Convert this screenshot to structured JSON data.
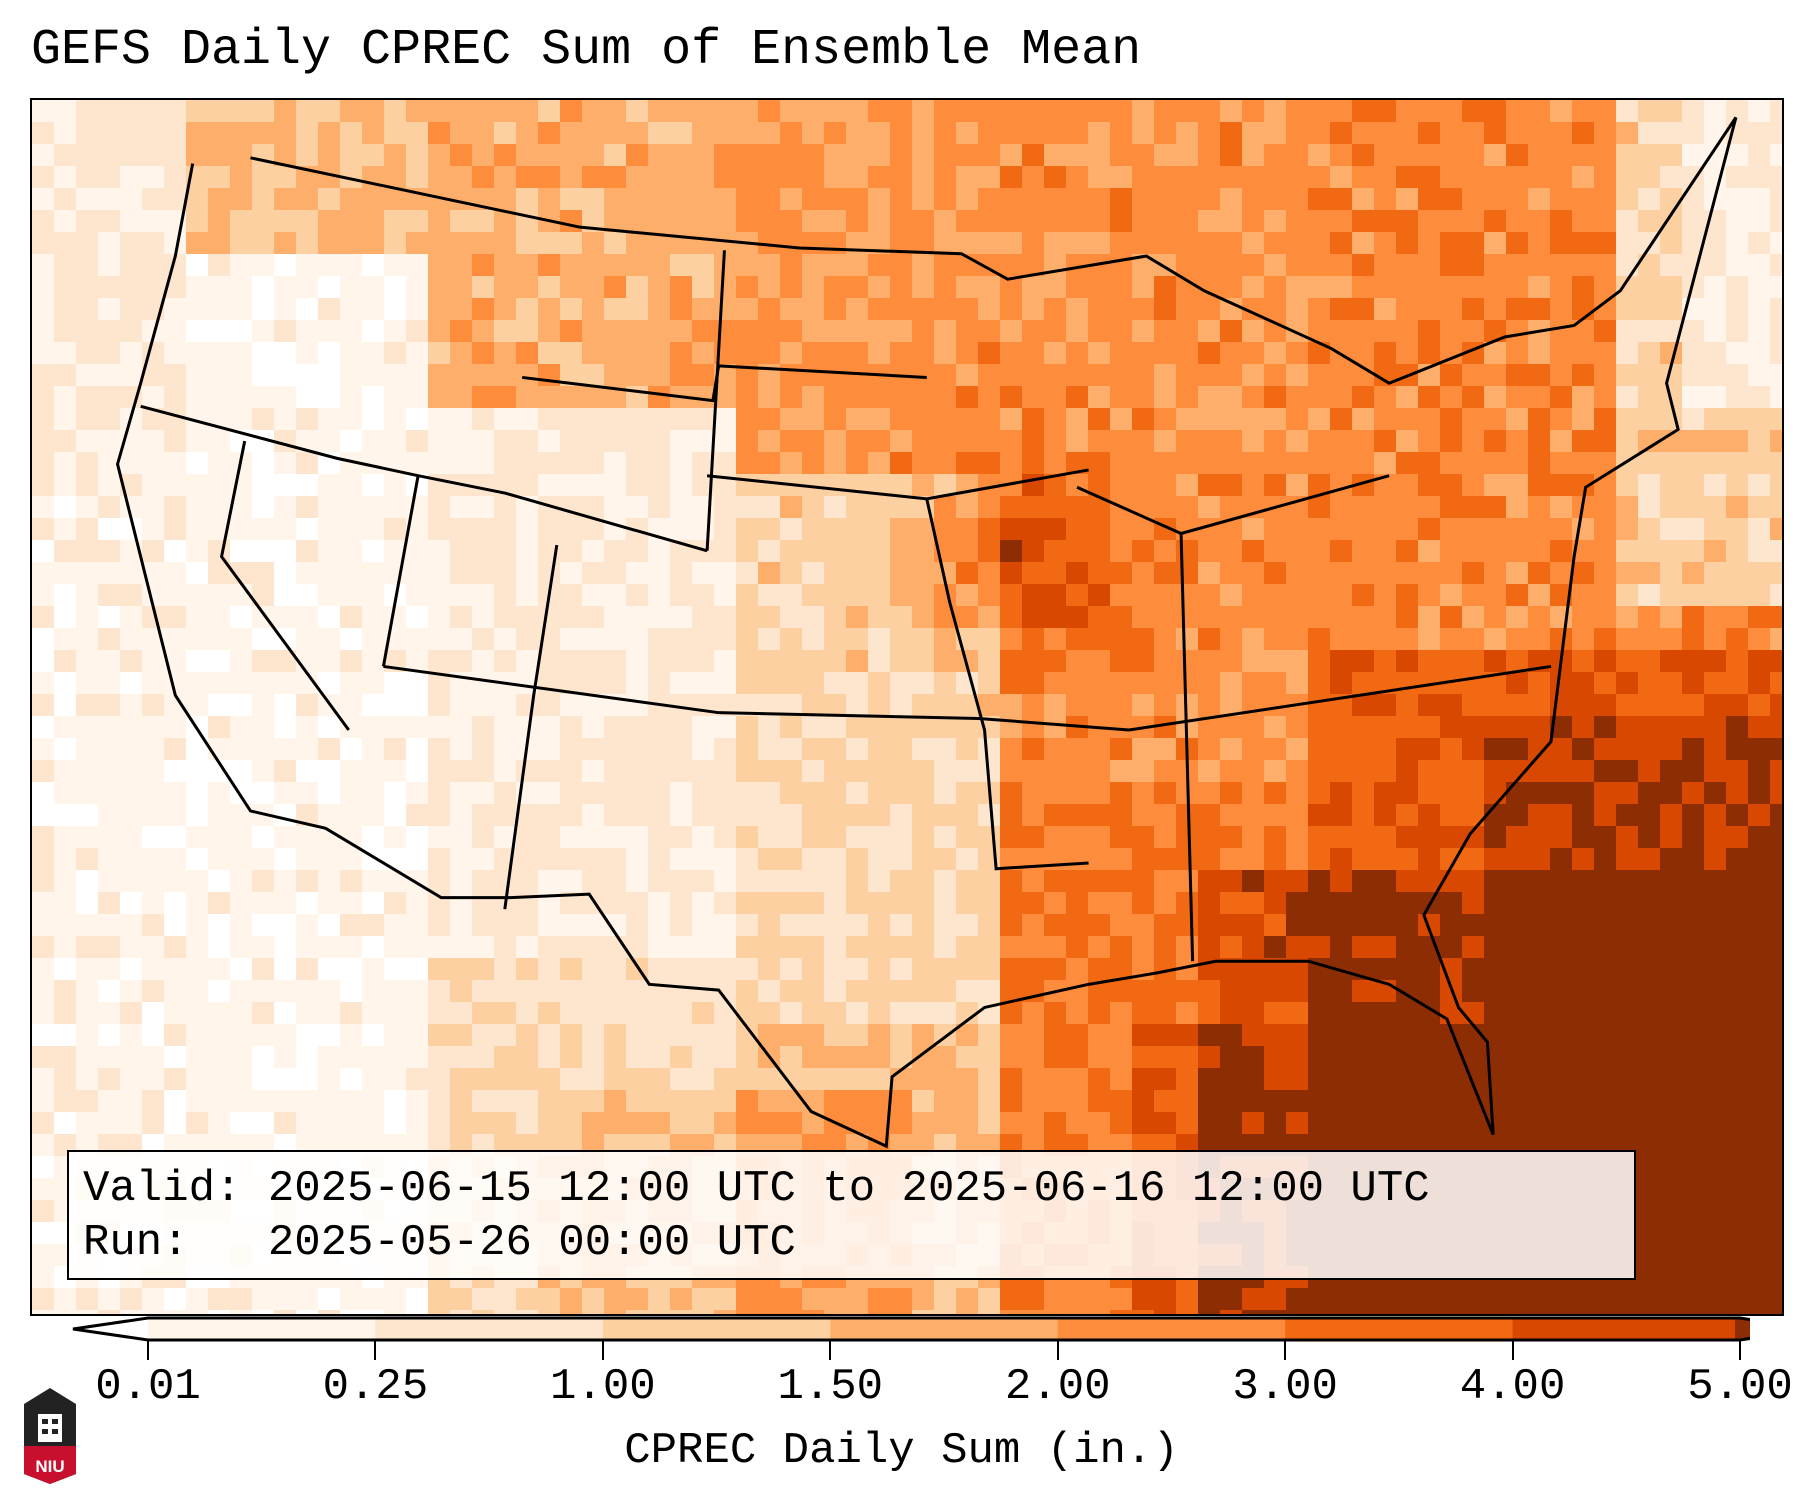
{
  "title": "GEFS Daily CPREC Sum of Ensemble Mean",
  "info": {
    "valid_label": "Valid:",
    "valid_value": "2025-06-15 12:00 UTC to 2025-06-16 12:00 UTC",
    "run_label": "Run:",
    "run_value": "2025-05-26 00:00 UTC"
  },
  "logo_text": "NIU",
  "chart_data": {
    "type": "heatmap",
    "title": "GEFS Daily CPREC Sum of Ensemble Mean",
    "colorbar_label": "CPREC Daily Sum (in.)",
    "levels": [
      "0.01",
      "0.25",
      "1.00",
      "1.50",
      "2.00",
      "3.00",
      "4.00",
      "5.00"
    ],
    "colors": [
      "#fff5eb",
      "#fee6ce",
      "#fdd0a2",
      "#fdae6b",
      "#fd8d3c",
      "#f16913",
      "#d94801",
      "#8c2d04"
    ],
    "extend": "max",
    "region": "Continental United States",
    "description_of_pattern": "light over the western US, heavier over the central Plains, Midwest, Southeast and western Atlantic/Gulf"
  }
}
